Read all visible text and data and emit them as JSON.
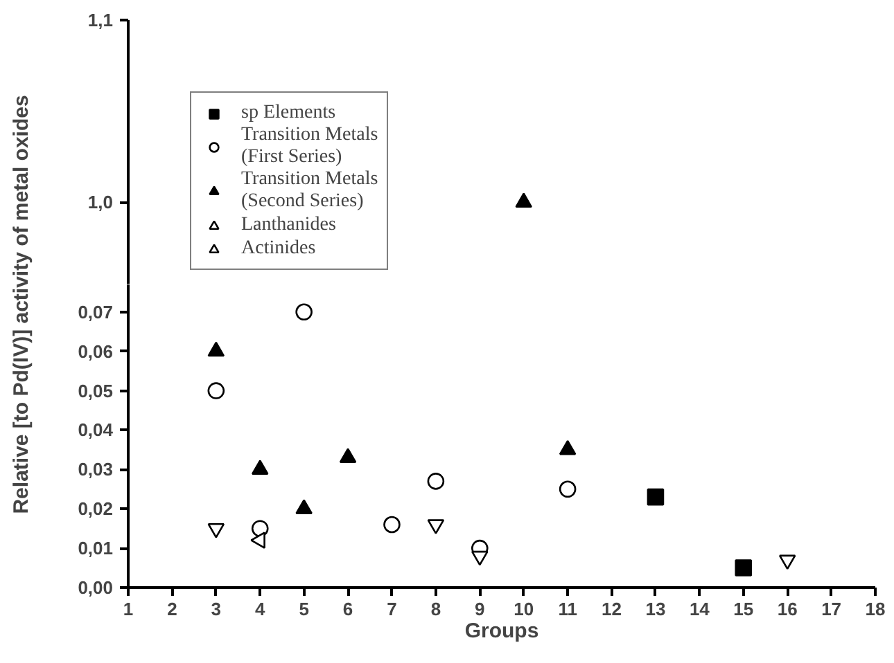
{
  "chart_data": [
    {
      "type": "scatter",
      "xlim": [
        1,
        18
      ],
      "ylim": [
        0.955,
        1.1
      ],
      "yticks": [
        {
          "value": 1.0,
          "label": "1,0"
        },
        {
          "value": 1.1,
          "label": "1,1"
        }
      ],
      "tick_labels": "y",
      "grid": false,
      "series": [
        {
          "color": "#000000",
          "marker": "triangle",
          "x": [
            10
          ],
          "values": [
            1.0
          ]
        }
      ]
    },
    {
      "type": "scatter",
      "xlabel": "Groups",
      "ylabel": "Relative [to Pd(IV)] activity of metal oxides",
      "xlim": [
        1,
        18
      ],
      "xticks": [
        1,
        2,
        3,
        4,
        5,
        6,
        7,
        8,
        9,
        10,
        11,
        12,
        13,
        14,
        15,
        16,
        17,
        18
      ],
      "ylim": [
        0,
        0.077
      ],
      "yticks": [
        {
          "value": 0,
          "label": "0,00"
        },
        {
          "value": 0.01,
          "label": "0,01"
        },
        {
          "value": 0.02,
          "label": "0,02"
        },
        {
          "value": 0.03,
          "label": "0,03"
        },
        {
          "value": 0.04,
          "label": "0,04"
        },
        {
          "value": 0.05,
          "label": "0,05"
        },
        {
          "value": 0.06,
          "label": "0,06"
        },
        {
          "value": 0.07,
          "label": "0,07"
        }
      ],
      "grid": false,
      "legend": "top left",
      "series": [
        {
          "name": "sp Elements",
          "color": "#000000",
          "marker": "square",
          "x": [
            13,
            15
          ],
          "values": [
            0.023,
            0.005
          ]
        },
        {
          "name": "Transition Metals\n(First Series)",
          "color": "#000000",
          "marker": "circle",
          "x": [
            3,
            4,
            5,
            7,
            8,
            9,
            11
          ],
          "values": [
            0.05,
            0.015,
            0.07,
            0.016,
            0.027,
            0.01,
            0.025
          ]
        },
        {
          "name": "Transition Metals\n(Second Series)",
          "color": "#000000",
          "marker": "triangle",
          "x": [
            3,
            4,
            5,
            6,
            11
          ],
          "values": [
            0.06,
            0.03,
            0.02,
            0.033,
            0.035
          ]
        },
        {
          "name": "Lanthanides",
          "color": "#000000",
          "marker": "triangle",
          "x": [
            3,
            8,
            9,
            16
          ],
          "values": [
            0.015,
            0.016,
            0.008,
            0.007
          ]
        },
        {
          "name": "Actinides",
          "color": "#000000",
          "marker": "triangle",
          "x": [
            4
          ],
          "values": [
            0.012
          ]
        }
      ]
    }
  ]
}
